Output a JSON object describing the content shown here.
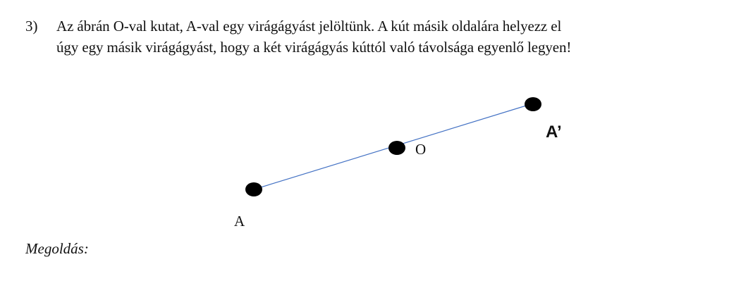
{
  "task": {
    "number": "3)",
    "text_line1": "Az ábrán O-val kutat, A-val egy virágágyást jelöltünk. A kút másik oldalára helyezz el",
    "text_line2": "úgy egy másik virágágyást, hogy a két virágágyás kúttól való távolsága egyenlő legyen!"
  },
  "figure": {
    "points": {
      "A": "A",
      "O": "O",
      "A_prime": "A’"
    },
    "line_color": "#4472c4",
    "dot_color": "#000000"
  },
  "solution_label": "Megoldás:"
}
